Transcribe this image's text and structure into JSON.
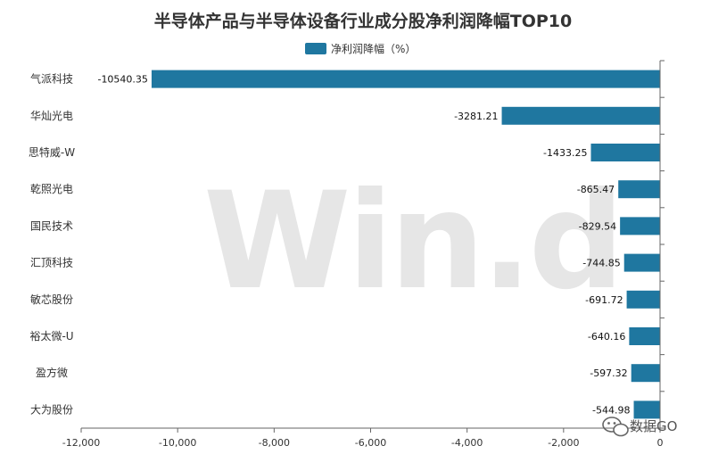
{
  "chart_data": {
    "type": "bar",
    "orientation": "horizontal",
    "title": "半导体产品与半导体设备行业成分股净利润降幅TOP10",
    "legend": {
      "entries": [
        "净利润降幅（%）"
      ],
      "placement": "top-center"
    },
    "series": [
      {
        "name": "净利润降幅（%）",
        "color": "#1f77a0",
        "values": [
          -10540.35,
          -3281.21,
          -1433.25,
          -865.47,
          -829.54,
          -744.85,
          -691.72,
          -640.16,
          -597.32,
          -544.98
        ]
      }
    ],
    "categories": [
      "气派科技",
      "华灿光电",
      "思特威-W",
      "乾照光电",
      "国民技术",
      "汇顶科技",
      "敏芯股份",
      "裕太微-U",
      "盈方微",
      "大为股份"
    ],
    "data_labels": [
      "-10540.35",
      "-3281.21",
      "-1433.25",
      "-865.47",
      "-829.54",
      "-744.85",
      "-691.72",
      "-640.16",
      "-597.32",
      "-544.98"
    ],
    "x_ticks": [
      -12000,
      -10000,
      -8000,
      -6000,
      -4000,
      -2000,
      0
    ],
    "x_tick_labels": [
      "-12,000",
      "-10,000",
      "-8,000",
      "-6,000",
      "-4,000",
      "-2,000",
      "0"
    ],
    "xlim": [
      -12000,
      0
    ],
    "grid": false
  },
  "watermark": {
    "text": "Win.d"
  },
  "badge": {
    "icon": "wechat-icon",
    "text": "数据GO"
  }
}
